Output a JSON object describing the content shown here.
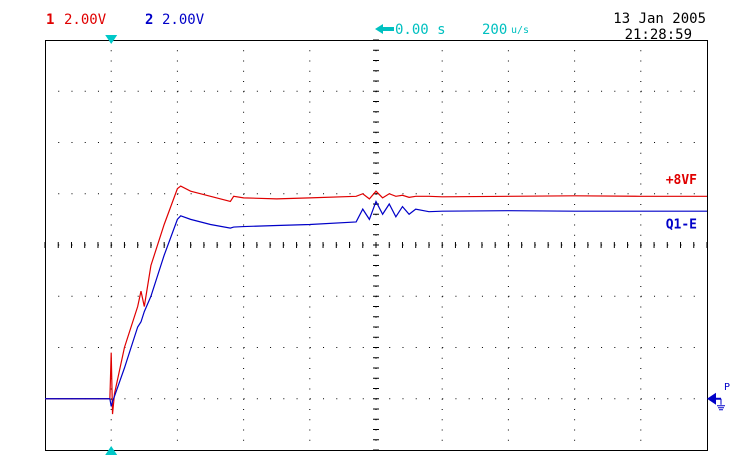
{
  "chart_data": {
    "type": "line",
    "channel_1": {
      "number": "1",
      "scale": "2.00V",
      "color": "#e00000"
    },
    "channel_2": {
      "number": "2",
      "scale": "2.00V",
      "color": "#0000c8"
    },
    "time_offset": "0.00 s",
    "timebase_value": "200",
    "timebase_unit": "u/s",
    "date": "13 Jan 2005",
    "time": "21:28:59",
    "ground_marker_label": "P",
    "x": [
      0,
      0.98,
      1.0,
      1.02,
      1.05,
      1.2,
      1.4,
      1.45,
      1.5,
      1.6,
      1.8,
      2.0,
      2.05,
      2.2,
      2.5,
      2.8,
      2.85,
      3.0,
      3.5,
      4.0,
      4.7,
      4.8,
      4.9,
      5.0,
      5.1,
      5.2,
      5.3,
      5.4,
      5.5,
      5.6,
      5.8,
      6.0,
      7.0,
      8.0,
      9.0,
      10.0
    ],
    "series": [
      {
        "name": "+8VF",
        "color": "#e00000",
        "values": [
          1.0,
          1.0,
          1.9,
          0.7,
          1.1,
          2.0,
          2.8,
          3.1,
          2.8,
          3.6,
          4.4,
          5.1,
          5.15,
          5.05,
          4.95,
          4.85,
          4.95,
          4.92,
          4.9,
          4.92,
          4.95,
          5.0,
          4.9,
          5.05,
          4.92,
          5.0,
          4.95,
          4.97,
          4.93,
          4.95,
          4.95,
          4.94,
          4.95,
          4.96,
          4.95,
          4.95
        ]
      },
      {
        "name": "Q1-E",
        "color": "#0000c8",
        "values": [
          1.0,
          1.0,
          0.85,
          0.95,
          1.05,
          1.6,
          2.4,
          2.5,
          2.7,
          3.0,
          3.8,
          4.5,
          4.57,
          4.5,
          4.4,
          4.33,
          4.35,
          4.36,
          4.38,
          4.4,
          4.45,
          4.7,
          4.5,
          4.85,
          4.6,
          4.8,
          4.55,
          4.75,
          4.6,
          4.7,
          4.65,
          4.66,
          4.67,
          4.66,
          4.66,
          4.66
        ]
      }
    ],
    "xlim": [
      0,
      10
    ],
    "ylim": [
      0,
      8
    ],
    "grid": true
  }
}
